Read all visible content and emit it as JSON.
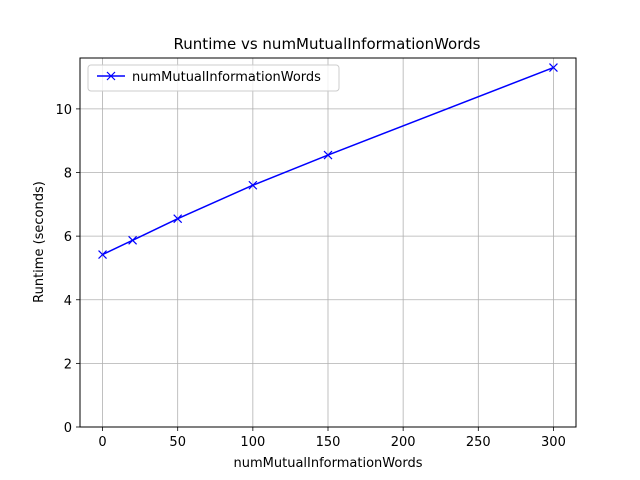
{
  "chart_data": {
    "type": "line",
    "title": "Runtime vs numMutualInformationWords",
    "xlabel": "numMutualInformationWords",
    "ylabel": "Runtime (seconds)",
    "xlim": [
      -15,
      315
    ],
    "ylim": [
      0,
      11.6
    ],
    "xticks": [
      0,
      50,
      100,
      150,
      200,
      250,
      300
    ],
    "yticks": [
      0,
      2,
      4,
      6,
      8,
      10
    ],
    "grid": true,
    "legend_position": "top-left",
    "series": [
      {
        "name": "numMutualInformationWords",
        "color": "#0000ff",
        "marker": "x",
        "x": [
          0,
          20,
          50,
          100,
          150,
          300
        ],
        "y": [
          5.42,
          5.87,
          6.55,
          7.6,
          8.55,
          11.3
        ]
      }
    ]
  }
}
